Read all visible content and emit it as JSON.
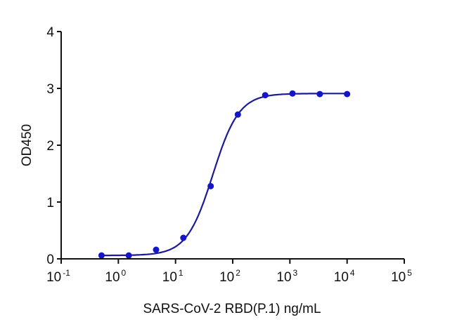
{
  "chart_data": {
    "type": "scatter",
    "title": "",
    "xlabel": "SARS-CoV-2 RBD(P.1) ng/mL",
    "ylabel": "OD450",
    "xscale": "log",
    "xlim": [
      0.1,
      100000
    ],
    "ylim": [
      0,
      4
    ],
    "x_ticks": [
      {
        "base": "10",
        "exp": "-1"
      },
      {
        "base": "10",
        "exp": "0"
      },
      {
        "base": "10",
        "exp": "1"
      },
      {
        "base": "10",
        "exp": "2"
      },
      {
        "base": "10",
        "exp": "3"
      },
      {
        "base": "10",
        "exp": "4"
      },
      {
        "base": "10",
        "exp": "5"
      }
    ],
    "y_ticks": [
      "0",
      "1",
      "2",
      "3",
      "4"
    ],
    "grid": false,
    "legend": null,
    "color": "#1414C8",
    "series": [
      {
        "name": "SARS-CoV-2 RBD(P.1)",
        "x": [
          0.508,
          1.52,
          4.57,
          13.7,
          41.2,
          123,
          370,
          1111,
          3333,
          10000
        ],
        "y": [
          0.06,
          0.06,
          0.16,
          0.37,
          1.28,
          2.54,
          2.88,
          2.91,
          2.9,
          2.9
        ],
        "fit": "4PL sigmoidal",
        "fit_params": {
          "bottom": 0.06,
          "top": 2.91,
          "ec50": 45,
          "hill": 1.9
        }
      }
    ]
  }
}
